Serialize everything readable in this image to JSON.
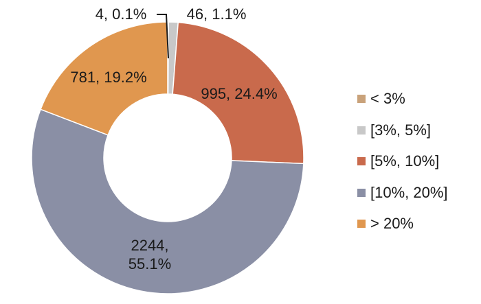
{
  "chart_data": {
    "type": "pie",
    "subtype": "donut",
    "title": "",
    "categories": [
      "< 3%",
      "[3%, 5%]",
      "[5%, 10%]",
      "[10%, 20%]",
      "> 20%"
    ],
    "values": [
      4,
      46,
      995,
      2244,
      781
    ],
    "percentages": [
      0.1,
      1.1,
      24.4,
      55.1,
      19.2
    ],
    "data_labels": [
      "4, 0.1%",
      "46, 1.1%",
      "995, 24.4%",
      "2244,\n55.1%",
      "781, 19.2%"
    ],
    "colors": [
      "#c9a27a",
      "#c8c8c8",
      "#c96a4c",
      "#8a8fa5",
      "#e0974f"
    ],
    "legend_position": "right",
    "start_angle": "top (12 o'clock), clockwise"
  }
}
